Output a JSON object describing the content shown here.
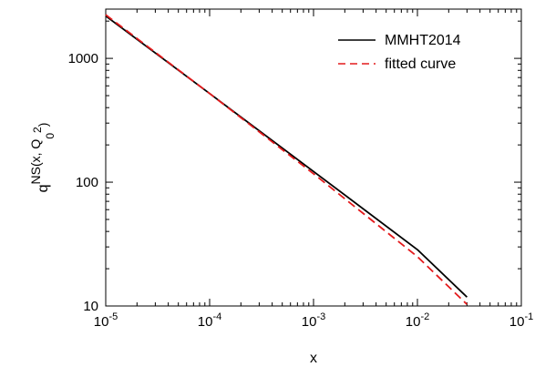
{
  "chart_data": {
    "type": "line",
    "title": "",
    "xlabel": "x",
    "ylabel": {
      "base": "q",
      "superscript": "NS",
      "args_open": "(x, Q",
      "q_subscript": "0",
      "q_superscript": "2",
      "args_close": ")"
    },
    "x_scale": "log",
    "y_scale": "log",
    "xlim": [
      1e-05,
      0.1
    ],
    "ylim": [
      10,
      2500
    ],
    "x_ticks": [
      {
        "value": 1e-05,
        "base": "10",
        "exp": "-5"
      },
      {
        "value": 0.0001,
        "base": "10",
        "exp": "-4"
      },
      {
        "value": 0.001,
        "base": "10",
        "exp": "-3"
      },
      {
        "value": 0.01,
        "base": "10",
        "exp": "-2"
      },
      {
        "value": 0.1,
        "base": "10",
        "exp": "-1"
      }
    ],
    "y_ticks": [
      {
        "value": 10,
        "label": "10"
      },
      {
        "value": 100,
        "label": "100"
      },
      {
        "value": 1000,
        "label": "1000"
      }
    ],
    "grid": false,
    "legend_position": "top-right",
    "series": [
      {
        "name": "MMHT2014",
        "color": "#000000",
        "style": "solid",
        "x": [
          1e-05,
          0.0001,
          0.001,
          0.01,
          0.03
        ],
        "y": [
          2200,
          520,
          122,
          28.5,
          11.8
        ]
      },
      {
        "name": "fitted curve",
        "color": "#e41a1c",
        "style": "dashed",
        "x": [
          1e-05,
          0.0001,
          0.001,
          0.01,
          0.03
        ],
        "y": [
          2250,
          520,
          117,
          25,
          10.3
        ]
      }
    ]
  }
}
